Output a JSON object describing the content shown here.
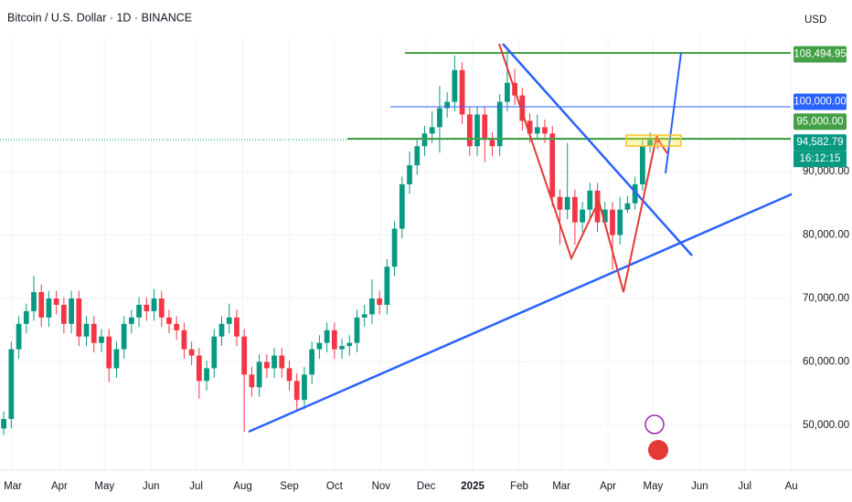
{
  "chart_data": {
    "type": "candlestick",
    "title": "Bitcoin / U.S. Dollar · 1D · BINANCE",
    "currency": "USD",
    "up_color": "#089981",
    "down_color": "#f23645",
    "xlim": [
      -8.5,
      517.6
    ],
    "ylim": [
      42950,
      111295
    ],
    "xticks": [
      {
        "value": 0,
        "label": "Mar"
      },
      {
        "value": 31,
        "label": "Apr"
      },
      {
        "value": 61,
        "label": "May"
      },
      {
        "value": 92,
        "label": "Jun"
      },
      {
        "value": 122,
        "label": "Jul"
      },
      {
        "value": 153,
        "label": "Aug"
      },
      {
        "value": 184,
        "label": "Sep"
      },
      {
        "value": 214,
        "label": "Oct"
      },
      {
        "value": 245,
        "label": "Nov"
      },
      {
        "value": 275,
        "label": "Dec"
      },
      {
        "value": 306,
        "label": "2025"
      },
      {
        "value": 337,
        "label": "Feb"
      },
      {
        "value": 365,
        "label": "Mar"
      },
      {
        "value": 396,
        "label": "Apr"
      },
      {
        "value": 426,
        "label": "May"
      },
      {
        "value": 457,
        "label": "Jun"
      },
      {
        "value": 487,
        "label": "Jul"
      },
      {
        "value": 518,
        "label": "Au"
      }
    ],
    "yticks": [
      {
        "value": 50000,
        "label": "50,000.00"
      },
      {
        "value": 60000,
        "label": "60,000.00"
      },
      {
        "value": 70000,
        "label": "70,000.00"
      },
      {
        "value": 80000,
        "label": "80,000.00"
      },
      {
        "value": 90000,
        "label": "90,000.00"
      }
    ],
    "price_labels": [
      {
        "value": 108494.95,
        "label": "108,494.95",
        "color": "#43a047"
      },
      {
        "value": 100000,
        "label": "100,000.00",
        "color": "#2962ff"
      },
      {
        "value": 95000,
        "label": "95,000.00",
        "color": "#43a047"
      },
      {
        "value": 94582.79,
        "label": "94,582.79",
        "color": "#089981"
      }
    ],
    "countdown": "16:12:15",
    "x": [
      -6,
      -1,
      4,
      9,
      14,
      19,
      24,
      29,
      34,
      39,
      44,
      49,
      54,
      59,
      64,
      69,
      74,
      79,
      84,
      89,
      94,
      99,
      104,
      109,
      114,
      119,
      124,
      129,
      134,
      139,
      144,
      149,
      154,
      159,
      164,
      169,
      174,
      179,
      184,
      189,
      194,
      199,
      204,
      209,
      214,
      219,
      224,
      229,
      234,
      239,
      244,
      249,
      254,
      259,
      264,
      269,
      274,
      279,
      284,
      289,
      294,
      299,
      304,
      309,
      314,
      319,
      324,
      329,
      334,
      339,
      344,
      349,
      354,
      359,
      364,
      369,
      374,
      379,
      384,
      389,
      394,
      399,
      404,
      409,
      414,
      419,
      424,
      429
    ],
    "open": [
      49500,
      51000,
      62000,
      66000,
      68000,
      71000,
      67000,
      70000,
      69000,
      66000,
      70000,
      64000,
      66000,
      63000,
      64000,
      59000,
      62000,
      66000,
      67000,
      69000,
      68000,
      70000,
      67000,
      66000,
      65000,
      62000,
      61000,
      57000,
      59000,
      64000,
      66000,
      67000,
      64000,
      58000,
      56000,
      60000,
      59000,
      61000,
      59000,
      57000,
      54000,
      58000,
      62000,
      63000,
      65000,
      62000,
      62500,
      63000,
      67000,
      67500,
      70000,
      69000,
      75000,
      81000,
      88000,
      91000,
      94000,
      96000,
      97000,
      100000,
      101000,
      106000,
      99000,
      94000,
      99000,
      95000,
      94000,
      101000,
      104000,
      102000,
      98000,
      96000,
      97000,
      96000,
      86000,
      84000,
      86000,
      82000,
      84000,
      87000,
      82000,
      84000,
      80000,
      84000,
      85000,
      88000,
      94000,
      95000
    ],
    "high": [
      52200,
      63200,
      67200,
      69200,
      73600,
      72200,
      71200,
      71200,
      70200,
      71200,
      71200,
      67200,
      67200,
      65200,
      65200,
      63200,
      67200,
      68200,
      70200,
      70200,
      71500,
      71200,
      68200,
      67200,
      66200,
      63200,
      62200,
      60200,
      65200,
      67200,
      69200,
      68200,
      65200,
      59200,
      61200,
      61200,
      62200,
      62200,
      60200,
      58200,
      59200,
      63200,
      64200,
      66200,
      66200,
      63700,
      64200,
      68200,
      69000,
      73000,
      71200,
      76200,
      82200,
      89200,
      93200,
      95200,
      97200,
      99500,
      103500,
      102500,
      108300,
      107200,
      100200,
      100200,
      100200,
      96200,
      102200,
      109000,
      106200,
      103200,
      99200,
      99000,
      98200,
      97200,
      87200,
      94500,
      87200,
      85200,
      88200,
      88200,
      85200,
      85200,
      86000,
      86200,
      89200,
      95200,
      96200,
      95800
    ],
    "low": [
      48500,
      49500,
      60500,
      64500,
      66500,
      65500,
      65500,
      67500,
      64500,
      64500,
      62500,
      62500,
      61500,
      61500,
      56800,
      57500,
      60500,
      64500,
      65500,
      66500,
      66500,
      65500,
      64500,
      63500,
      60500,
      59500,
      54200,
      55500,
      57500,
      62500,
      64500,
      62500,
      49000,
      54500,
      54500,
      57500,
      57500,
      57500,
      55500,
      52500,
      52500,
      56500,
      60500,
      61500,
      60500,
      60500,
      61000,
      61500,
      65500,
      66000,
      67500,
      67500,
      73500,
      79500,
      86500,
      89500,
      92500,
      94500,
      93000,
      98500,
      99500,
      97500,
      92500,
      92500,
      91500,
      92500,
      92500,
      99500,
      100500,
      96500,
      94500,
      95000,
      94500,
      84500,
      78500,
      82500,
      78500,
      80500,
      82500,
      80500,
      81500,
      74500,
      78500,
      83500,
      84000,
      87000,
      93000,
      93500
    ],
    "close": [
      51000,
      62000,
      66000,
      68000,
      71000,
      67000,
      70000,
      69000,
      66000,
      70000,
      64000,
      66000,
      63000,
      64000,
      59000,
      62000,
      66000,
      67000,
      69000,
      68000,
      70000,
      67000,
      66000,
      65000,
      62000,
      61000,
      57000,
      59000,
      64000,
      66000,
      67000,
      64000,
      58000,
      56000,
      60000,
      59000,
      61000,
      59000,
      57000,
      54000,
      58000,
      62000,
      63000,
      65000,
      62000,
      62500,
      63000,
      67000,
      67500,
      70000,
      69000,
      75000,
      81000,
      88000,
      91000,
      94000,
      96000,
      97000,
      100000,
      101000,
      106000,
      99000,
      94000,
      99000,
      95000,
      94000,
      101000,
      104000,
      102000,
      98000,
      96000,
      97000,
      96000,
      86000,
      84000,
      86000,
      82000,
      84000,
      87000,
      82000,
      84000,
      80000,
      84000,
      85000,
      88000,
      94000,
      95000,
      94582.79
    ]
  }
}
